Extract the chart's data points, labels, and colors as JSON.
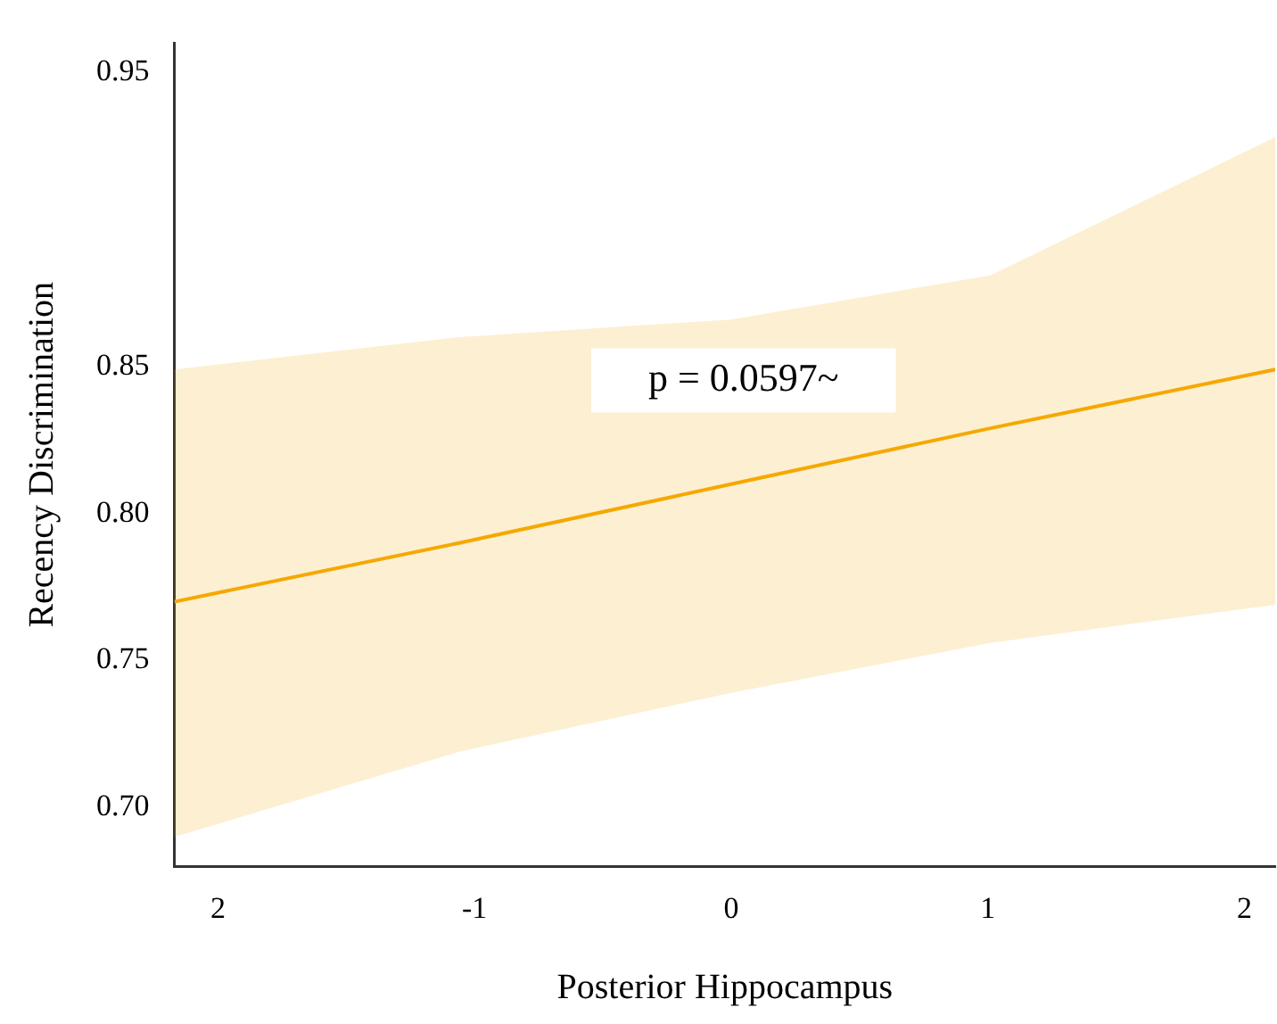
{
  "chart_data": {
    "type": "line",
    "xlabel": "Posterior Hippocampus",
    "ylabel": "Recency Discrimination",
    "x": [
      -2.17,
      -1.06,
      0,
      1.01,
      2.12
    ],
    "series": [
      {
        "color": "#f5a800",
        "values": [
          0.77,
          0.79,
          0.81,
          0.829,
          0.849
        ],
        "lower": [
          0.69,
          0.719,
          0.739,
          0.756,
          0.769
        ],
        "upper": [
          0.849,
          0.86,
          0.866,
          0.881,
          0.928
        ]
      }
    ],
    "xlim": [
      -2.17,
      2.12
    ],
    "xticks": [
      {
        "value": -2,
        "label": "2"
      },
      -1,
      0,
      1,
      2
    ],
    "ylim": [
      0.68,
      0.96
    ],
    "yticks": [
      {
        "value": 0.7,
        "label": "0.70"
      },
      0.75,
      {
        "value": 0.8,
        "label": "0.80"
      },
      0.85,
      0.95
    ],
    "annotations": [
      "p = 0.0597~"
    ],
    "grid": false,
    "legend": false,
    "marker": "none",
    "line_style": "solid"
  }
}
